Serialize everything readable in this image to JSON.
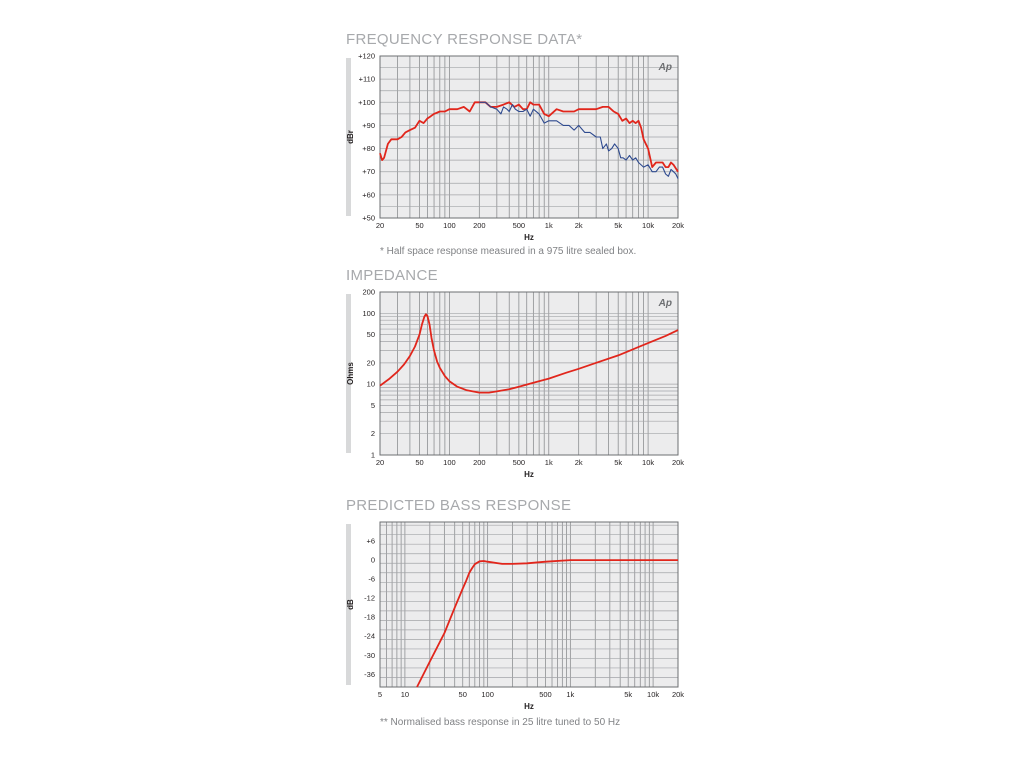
{
  "chart_data": [
    {
      "type": "line",
      "title": "FREQUENCY RESPONSE DATA*",
      "note": "* Half space response measured in a 975 litre sealed box.",
      "xlabel": "Hz",
      "ylabel": "dBr",
      "xscale": "log",
      "xlim": [
        20,
        20000
      ],
      "ylim": [
        50,
        120
      ],
      "x_ticks": [
        {
          "v": 20,
          "label": "20"
        },
        {
          "v": 50,
          "label": "50"
        },
        {
          "v": 100,
          "label": "100"
        },
        {
          "v": 200,
          "label": "200"
        },
        {
          "v": 500,
          "label": "500"
        },
        {
          "v": 1000,
          "label": "1k"
        },
        {
          "v": 2000,
          "label": "2k"
        },
        {
          "v": 5000,
          "label": "5k"
        },
        {
          "v": 10000,
          "label": "10k"
        },
        {
          "v": 20000,
          "label": "20k"
        }
      ],
      "y_ticks": [
        {
          "v": 50,
          "label": "+50"
        },
        {
          "v": 60,
          "label": "+60"
        },
        {
          "v": 70,
          "label": "+70"
        },
        {
          "v": 80,
          "label": "+80"
        },
        {
          "v": 90,
          "label": "+90"
        },
        {
          "v": 100,
          "label": "+100"
        },
        {
          "v": 110,
          "label": "+110"
        },
        {
          "v": 120,
          "label": "+120"
        }
      ],
      "grid": true,
      "logo": "Ap",
      "series": [
        {
          "color": "#e1261c",
          "x": [
            20,
            21,
            22,
            24,
            26,
            28,
            30,
            33,
            36,
            40,
            45,
            50,
            55,
            60,
            65,
            70,
            80,
            90,
            100,
            120,
            140,
            160,
            180,
            200,
            230,
            260,
            300,
            350,
            400,
            450,
            500,
            550,
            600,
            650,
            700,
            800,
            900,
            1000,
            1200,
            1400,
            1600,
            1800,
            2000,
            2500,
            3000,
            3500,
            4000,
            4500,
            5000,
            5500,
            6000,
            6500,
            7000,
            7500,
            8000,
            8500,
            9000,
            10000,
            11000,
            12000,
            13000,
            14000,
            15000,
            16000,
            17000,
            18000,
            20000
          ],
          "y": [
            78,
            75,
            76,
            82,
            84,
            84,
            84,
            85,
            87,
            88,
            89,
            92,
            91,
            93,
            94,
            95,
            96,
            96,
            97,
            97,
            98,
            96,
            100,
            100,
            100,
            98,
            98,
            99,
            100,
            98,
            99,
            97,
            97,
            100,
            99,
            99,
            95,
            94,
            97,
            96,
            96,
            96,
            97,
            97,
            97,
            98,
            98,
            96,
            95,
            92,
            93,
            91,
            92,
            91,
            92,
            89,
            84,
            80,
            72,
            74,
            74,
            74,
            72,
            72,
            74,
            73,
            70
          ]
        },
        {
          "color": "#2e4a8f",
          "x": [
            200,
            230,
            260,
            300,
            330,
            350,
            380,
            400,
            430,
            460,
            500,
            550,
            600,
            650,
            700,
            800,
            900,
            1000,
            1200,
            1400,
            1600,
            1800,
            2000,
            2300,
            2600,
            3000,
            3300,
            3500,
            3800,
            4000,
            4300,
            4600,
            5000,
            5300,
            5600,
            6000,
            6500,
            7000,
            7500,
            8000,
            9000,
            10000,
            11000,
            12000,
            13000,
            14000,
            15000,
            16000,
            17000,
            18000,
            19000,
            20000
          ],
          "y": [
            100,
            100,
            98,
            97,
            95,
            98,
            97,
            96,
            99,
            97,
            96,
            96,
            97,
            94,
            97,
            95,
            91,
            92,
            92,
            90,
            90,
            88,
            90,
            87,
            87,
            85,
            85,
            80,
            82,
            79,
            80,
            82,
            80,
            76,
            76,
            75,
            77,
            75,
            76,
            74,
            72,
            73,
            70,
            70,
            72,
            72,
            69,
            68,
            71,
            70,
            69,
            67
          ]
        }
      ]
    },
    {
      "type": "line",
      "title": "IMPEDANCE",
      "xlabel": "Hz",
      "ylabel": "Ohms",
      "xscale": "log",
      "yscale": "log",
      "xlim": [
        20,
        20000
      ],
      "ylim": [
        1,
        200
      ],
      "x_ticks": [
        {
          "v": 20,
          "label": "20"
        },
        {
          "v": 50,
          "label": "50"
        },
        {
          "v": 100,
          "label": "100"
        },
        {
          "v": 200,
          "label": "200"
        },
        {
          "v": 500,
          "label": "500"
        },
        {
          "v": 1000,
          "label": "1k"
        },
        {
          "v": 2000,
          "label": "2k"
        },
        {
          "v": 5000,
          "label": "5k"
        },
        {
          "v": 10000,
          "label": "10k"
        },
        {
          "v": 20000,
          "label": "20k"
        }
      ],
      "y_ticks": [
        {
          "v": 1,
          "label": "1"
        },
        {
          "v": 2,
          "label": "2"
        },
        {
          "v": 5,
          "label": "5"
        },
        {
          "v": 10,
          "label": "10"
        },
        {
          "v": 20,
          "label": "20"
        },
        {
          "v": 50,
          "label": "50"
        },
        {
          "v": 100,
          "label": "100"
        },
        {
          "v": 200,
          "label": "200"
        }
      ],
      "grid": true,
      "logo": "Ap",
      "series": [
        {
          "color": "#e1261c",
          "x": [
            20,
            25,
            30,
            35,
            40,
            45,
            50,
            53,
            56,
            58,
            60,
            63,
            66,
            70,
            75,
            80,
            90,
            100,
            120,
            150,
            180,
            200,
            250,
            300,
            400,
            500,
            700,
            1000,
            1500,
            2000,
            3000,
            5000,
            7000,
            10000,
            15000,
            20000
          ],
          "y": [
            9.5,
            12,
            15,
            19,
            25,
            34,
            50,
            70,
            90,
            97,
            92,
            70,
            45,
            30,
            21,
            17,
            13,
            11,
            9.2,
            8.2,
            7.8,
            7.6,
            7.6,
            7.9,
            8.5,
            9.2,
            10.5,
            12,
            14.5,
            16.5,
            20,
            25.5,
            31,
            38,
            48,
            58
          ]
        }
      ]
    },
    {
      "type": "line",
      "title": "PREDICTED BASS RESPONSE",
      "note": "** Normalised bass response in 25 litre tuned to 50 Hz",
      "xlabel": "Hz",
      "ylabel": "dB",
      "xscale": "log",
      "xlim": [
        5,
        20000
      ],
      "ylim": [
        -40,
        12
      ],
      "x_ticks": [
        {
          "v": 5,
          "label": "5"
        },
        {
          "v": 10,
          "label": "10"
        },
        {
          "v": 50,
          "label": "50"
        },
        {
          "v": 100,
          "label": "100"
        },
        {
          "v": 500,
          "label": "500"
        },
        {
          "v": 1000,
          "label": "1k"
        },
        {
          "v": 5000,
          "label": "5k"
        },
        {
          "v": 10000,
          "label": "10k"
        },
        {
          "v": 20000,
          "label": "20k"
        }
      ],
      "y_ticks": [
        {
          "v": -36,
          "label": "-36"
        },
        {
          "v": -30,
          "label": "-30"
        },
        {
          "v": -24,
          "label": "-24"
        },
        {
          "v": -18,
          "label": "-18"
        },
        {
          "v": -12,
          "label": "-12"
        },
        {
          "v": -6,
          "label": "-6"
        },
        {
          "v": 0,
          "label": "0"
        },
        {
          "v": 6,
          "label": "+6"
        }
      ],
      "grid": true,
      "series": [
        {
          "color": "#e1261c",
          "x": [
            14,
            20,
            30,
            40,
            50,
            55,
            60,
            65,
            70,
            80,
            90,
            100,
            150,
            200,
            300,
            500,
            1000,
            2000,
            5000,
            10000,
            20000
          ],
          "y": [
            -40,
            -32,
            -23,
            -15,
            -9,
            -6.5,
            -4,
            -2.5,
            -1.3,
            -0.4,
            -0.3,
            -0.5,
            -1.2,
            -1.2,
            -1,
            -0.5,
            0,
            0,
            0,
            0,
            0
          ]
        }
      ]
    }
  ]
}
